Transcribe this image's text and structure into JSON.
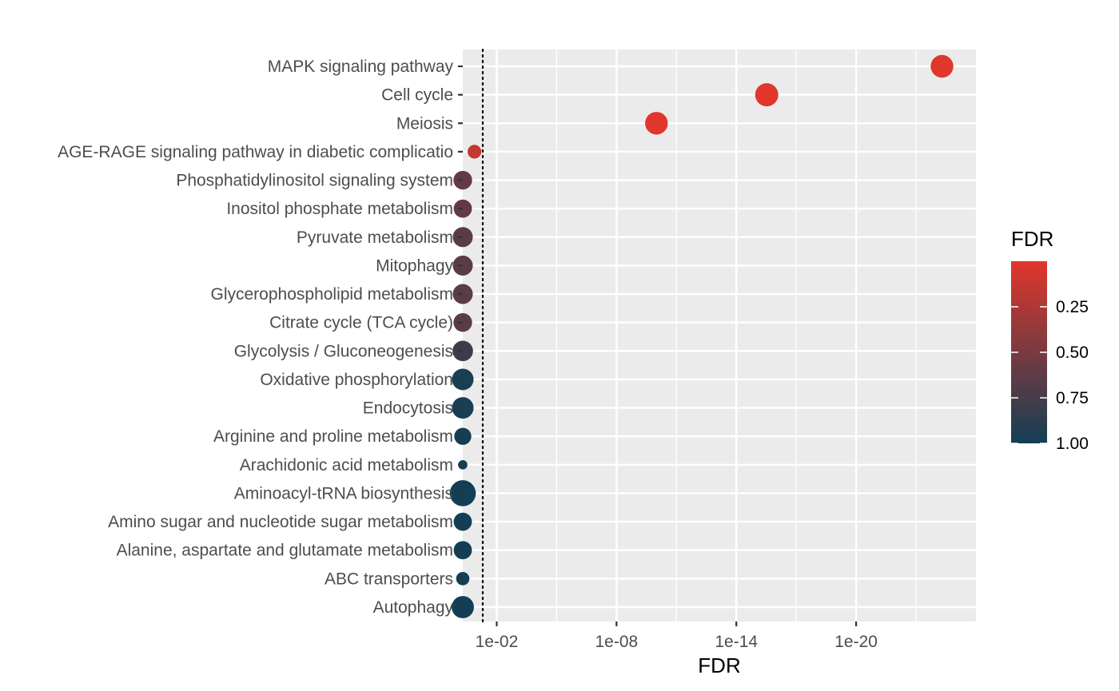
{
  "chart_data": {
    "type": "scatter",
    "xlabel": "FDR",
    "ylabel": "",
    "x_scale": "log10-reversed",
    "xlim": [
      0.5,
      1e-26
    ],
    "threshold_line": 0.05,
    "x_ticks": [
      {
        "value": 0.01,
        "label": "1e-02"
      },
      {
        "value": 1e-08,
        "label": "1e-08"
      },
      {
        "value": 1e-14,
        "label": "1e-14"
      },
      {
        "value": 1e-20,
        "label": "1e-20"
      }
    ],
    "categories": [
      "MAPK signaling pathway",
      "Cell cycle",
      "Meiosis",
      "AGE-RAGE signaling pathway in diabetic complicatio",
      "Phosphatidylinositol signaling system",
      "Inositol phosphate metabolism",
      "Pyruvate metabolism",
      "Mitophagy",
      "Glycerophospholipid metabolism",
      "Citrate cycle (TCA cycle)",
      "Glycolysis / Gluconeogenesis",
      "Oxidative phosphorylation",
      "Endocytosis",
      "Arginine and proline metabolism",
      "Arachidonic acid metabolism",
      "Aminoacyl-tRNA biosynthesis",
      "Amino sugar and nucleotide sugar metabolism",
      "Alanine, aspartate and glutamate metabolism",
      "ABC transporters",
      "Autophagy"
    ],
    "points": [
      {
        "category": "MAPK signaling pathway",
        "fdr": 5e-25,
        "size": 0.8
      },
      {
        "category": "Cell cycle",
        "fdr": 3e-16,
        "size": 0.82
      },
      {
        "category": "Meiosis",
        "fdr": 1e-10,
        "size": 0.8
      },
      {
        "category": "AGE-RAGE signaling pathway in diabetic complicatio",
        "fdr": 0.13,
        "size": 0.4
      },
      {
        "category": "Phosphatidylinositol signaling system",
        "fdr": 0.6,
        "size": 0.62
      },
      {
        "category": "Inositol phosphate metabolism",
        "fdr": 0.6,
        "size": 0.6
      },
      {
        "category": "Pyruvate metabolism",
        "fdr": 0.65,
        "size": 0.68
      },
      {
        "category": "Mitophagy",
        "fdr": 0.65,
        "size": 0.68
      },
      {
        "category": "Glycerophospholipid metabolism",
        "fdr": 0.65,
        "size": 0.68
      },
      {
        "category": "Citrate cycle (TCA cycle)",
        "fdr": 0.65,
        "size": 0.62
      },
      {
        "category": "Glycolysis / Gluconeogenesis",
        "fdr": 0.8,
        "size": 0.7
      },
      {
        "category": "Oxidative phosphorylation",
        "fdr": 0.97,
        "size": 0.75
      },
      {
        "category": "Endocytosis",
        "fdr": 0.97,
        "size": 0.75
      },
      {
        "category": "Arginine and proline metabolism",
        "fdr": 1.0,
        "size": 0.55
      },
      {
        "category": "Arachidonic acid metabolism",
        "fdr": 1.0,
        "size": 0.2
      },
      {
        "category": "Aminoacyl-tRNA biosynthesis",
        "fdr": 1.0,
        "size": 0.95
      },
      {
        "category": "Amino sugar and nucleotide sugar metabolism",
        "fdr": 1.0,
        "size": 0.6
      },
      {
        "category": "Alanine, aspartate and glutamate metabolism",
        "fdr": 1.0,
        "size": 0.6
      },
      {
        "category": "ABC transporters",
        "fdr": 1.0,
        "size": 0.38
      },
      {
        "category": "Autophagy",
        "fdr": 1.0,
        "size": 0.78
      }
    ],
    "legend": {
      "title": "FDR",
      "position": "right",
      "type": "colorbar",
      "range": [
        0.0,
        1.0
      ],
      "ticks": [
        {
          "value": 0.25,
          "label": "0.25"
        },
        {
          "value": 0.5,
          "label": "0.50"
        },
        {
          "value": 0.75,
          "label": "0.75"
        },
        {
          "value": 1.0,
          "label": "1.00"
        }
      ],
      "low_color": "#e0362c",
      "high_color": "#123f55"
    },
    "colors": {
      "panel_background": "#ebebeb",
      "grid": "#ffffff",
      "threshold_line": "#000000"
    },
    "grid": true
  }
}
